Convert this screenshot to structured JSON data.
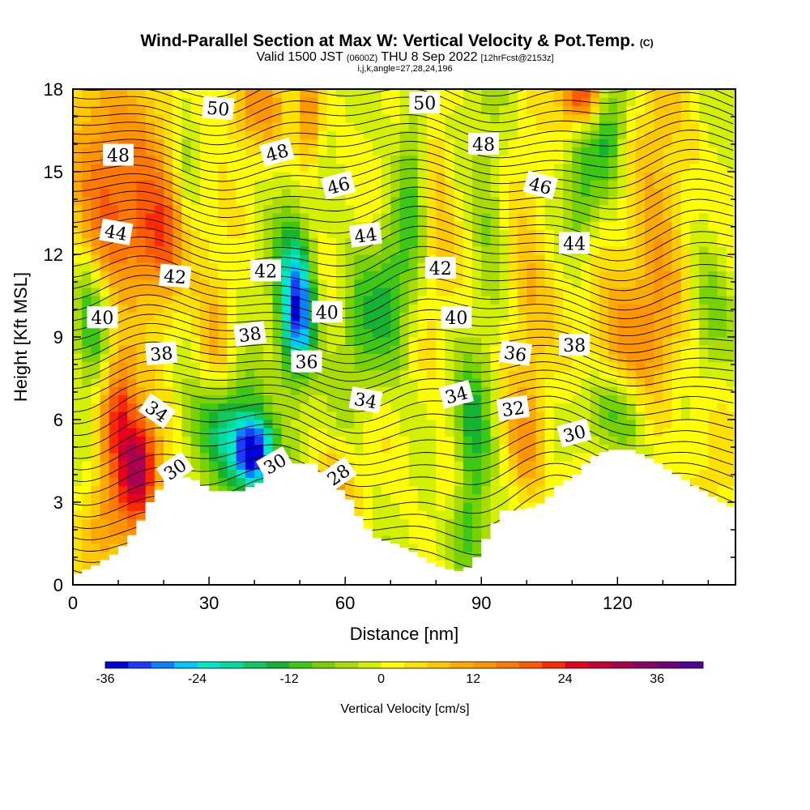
{
  "header": {
    "title": "Wind-Parallel Section at Max W: Vertical Velocity & Pot.Temp.",
    "copyright": "(C)",
    "valid_prefix": "Valid 1500 JST",
    "valid_utc": "(0600Z)",
    "valid_date": "THU 8 Sep 2022",
    "forecast": "[12hrFcst@2153z]",
    "indices": "i,j,k,angle=27,28,24,196"
  },
  "chart_data": {
    "type": "heatmap",
    "title": "Wind-Parallel Section at Max W: Vertical Velocity & Pot.Temp.",
    "xlabel": "Distance [nm]",
    "ylabel": "Height [Kft MSL]",
    "xlim": [
      0,
      146
    ],
    "ylim": [
      0,
      18
    ],
    "x_ticks": [
      "0",
      "30",
      "60",
      "90",
      "120"
    ],
    "x_tick_values": [
      0,
      30,
      60,
      90,
      120
    ],
    "y_ticks": [
      "0",
      "3",
      "6",
      "9",
      "12",
      "15",
      "18"
    ],
    "y_tick_values": [
      0,
      3,
      6,
      9,
      12,
      15,
      18
    ],
    "colorbar": {
      "label": "Vertical Velocity [cm/s]",
      "tick_labels": [
        "-36",
        "-24",
        "-12",
        "0",
        "12",
        "24",
        "36"
      ],
      "tick_values": [
        -36,
        -24,
        -12,
        0,
        12,
        24,
        36
      ],
      "levels": [
        -36,
        -33,
        -30,
        -27,
        -24,
        -21,
        -18,
        -15,
        -12,
        -9,
        -6,
        -3,
        0,
        3,
        6,
        9,
        12,
        15,
        18,
        21,
        24,
        27,
        30,
        33,
        36,
        39,
        42
      ],
      "colors": [
        "#0000dc",
        "#1e3cff",
        "#0a82ff",
        "#00c8ff",
        "#00e6c8",
        "#00dca0",
        "#10c864",
        "#14b432",
        "#3cc814",
        "#78d200",
        "#aadc00",
        "#d2f000",
        "#ffff00",
        "#ffe100",
        "#ffc800",
        "#ffaa00",
        "#ff9600",
        "#ff7800",
        "#ff5a00",
        "#ff2800",
        "#e6001e",
        "#c80032",
        "#aa0050",
        "#8c0064",
        "#6e0078",
        "#500096"
      ]
    },
    "terrain": [
      [
        0,
        0.4
      ],
      [
        4,
        0.7
      ],
      [
        9,
        1.2
      ],
      [
        13,
        2
      ],
      [
        16,
        3
      ],
      [
        20,
        3.9
      ],
      [
        25,
        3.9
      ],
      [
        30,
        3.4
      ],
      [
        36,
        3.4
      ],
      [
        40,
        3.7
      ],
      [
        43,
        4.4
      ],
      [
        48,
        4.4
      ],
      [
        52,
        4.4
      ],
      [
        56,
        3.8
      ],
      [
        60,
        3.1
      ],
      [
        63,
        2.2
      ],
      [
        66,
        1.7
      ],
      [
        70,
        1.5
      ],
      [
        74,
        1.2
      ],
      [
        78,
        0.8
      ],
      [
        81,
        0.6
      ],
      [
        84,
        0.5
      ],
      [
        87,
        0.7
      ],
      [
        88,
        1
      ],
      [
        91,
        2
      ],
      [
        94,
        2.7
      ],
      [
        96,
        2.7
      ],
      [
        100,
        2.8
      ],
      [
        103,
        3
      ],
      [
        106,
        3.6
      ],
      [
        110,
        4
      ],
      [
        113,
        4.6
      ],
      [
        117,
        4.9
      ],
      [
        122,
        4.9
      ],
      [
        126,
        4.6
      ],
      [
        130,
        4.2
      ],
      [
        134,
        3.8
      ],
      [
        138,
        3.4
      ],
      [
        142,
        3
      ],
      [
        146,
        2.7
      ]
    ],
    "w_features": [
      {
        "x": 15,
        "y": 4.2,
        "value": 30,
        "sx": 3,
        "sy": 1.3
      },
      {
        "x": 10,
        "y": 6.5,
        "value": 22,
        "sx": 3,
        "sy": 1.6
      },
      {
        "x": 8,
        "y": 2.2,
        "value": 12,
        "sx": 4,
        "sy": 1.4
      },
      {
        "x": 40,
        "y": 4.7,
        "value": -34,
        "sx": 3,
        "sy": 0.9
      },
      {
        "x": 35,
        "y": 5.6,
        "value": -18,
        "sx": 5,
        "sy": 1.4
      },
      {
        "x": 50,
        "y": 9.8,
        "value": -24,
        "sx": 2.5,
        "sy": 1.6
      },
      {
        "x": 48,
        "y": 10.5,
        "value": -12,
        "sx": 3,
        "sy": 2.5
      },
      {
        "x": 88,
        "y": 5.2,
        "value": -13,
        "sx": 3,
        "sy": 2
      },
      {
        "x": 86,
        "y": 2.2,
        "value": -10,
        "sx": 4,
        "sy": 1.5
      },
      {
        "x": 120,
        "y": 6.3,
        "value": -15,
        "sx": 5,
        "sy": 1.2
      },
      {
        "x": 118,
        "y": 16.5,
        "value": -13,
        "sx": 3,
        "sy": 1.6
      },
      {
        "x": 112,
        "y": 14,
        "value": -11,
        "sx": 2.5,
        "sy": 1.5
      },
      {
        "x": 112,
        "y": 17.8,
        "value": 26,
        "sx": 3,
        "sy": 0.8
      },
      {
        "x": 15,
        "y": 14,
        "value": 12,
        "sx": 7,
        "sy": 3
      },
      {
        "x": 5,
        "y": 15,
        "value": 12,
        "sx": 5,
        "sy": 4
      },
      {
        "x": 20,
        "y": 12.5,
        "value": 14,
        "sx": 5,
        "sy": 1.5
      },
      {
        "x": 3,
        "y": 10.5,
        "value": -12,
        "sx": 3,
        "sy": 1.5
      },
      {
        "x": 5,
        "y": 8.5,
        "value": -10,
        "sx": 3,
        "sy": 1.5
      },
      {
        "x": 40,
        "y": 17.5,
        "value": 12,
        "sx": 5,
        "sy": 1.2
      },
      {
        "x": 52,
        "y": 17,
        "value": 15,
        "sx": 2,
        "sy": 1.5
      },
      {
        "x": 75,
        "y": 15,
        "value": -9,
        "sx": 2.5,
        "sy": 3
      },
      {
        "x": 80,
        "y": 14,
        "value": 8,
        "sx": 3,
        "sy": 3
      },
      {
        "x": 70,
        "y": 10.5,
        "value": -11,
        "sx": 3,
        "sy": 2
      },
      {
        "x": 63,
        "y": 9.5,
        "value": -9,
        "sx": 3,
        "sy": 2
      },
      {
        "x": 120,
        "y": 8.5,
        "value": 13,
        "sx": 5,
        "sy": 2
      },
      {
        "x": 128,
        "y": 10,
        "value": 10,
        "sx": 4,
        "sy": 2.5
      },
      {
        "x": 140,
        "y": 10,
        "value": -8,
        "sx": 3,
        "sy": 2
      },
      {
        "x": 100,
        "y": 11,
        "value": 9,
        "sx": 4,
        "sy": 3
      },
      {
        "x": 92,
        "y": 14,
        "value": -7,
        "sx": 3,
        "sy": 3
      },
      {
        "x": 100,
        "y": 5,
        "value": 11,
        "sx": 3,
        "sy": 1.5
      },
      {
        "x": 58,
        "y": 3.5,
        "value": 12,
        "sx": 3,
        "sy": 1
      },
      {
        "x": 83,
        "y": 3.5,
        "value": 10,
        "sx": 3,
        "sy": 1.3
      },
      {
        "x": 130,
        "y": 15,
        "value": 8,
        "sx": 5,
        "sy": 3
      },
      {
        "x": 25,
        "y": 14,
        "value": -6,
        "sx": 2,
        "sy": 4
      },
      {
        "x": 32,
        "y": 9,
        "value": 10,
        "sx": 3,
        "sy": 1.5
      },
      {
        "x": 140,
        "y": 5,
        "value": 6,
        "sx": 4,
        "sy": 2
      },
      {
        "x": 110,
        "y": 4,
        "value": 4,
        "sx": 3,
        "sy": 1
      }
    ],
    "theta_labels": [
      {
        "text": "50",
        "x": 32,
        "y": 17.3,
        "rot": 5
      },
      {
        "text": "50",
        "x": 77.5,
        "y": 17.5,
        "rot": 0
      },
      {
        "text": "48",
        "x": 10,
        "y": 15.6,
        "rot": 0
      },
      {
        "text": "48",
        "x": 45,
        "y": 15.7,
        "rot": -15
      },
      {
        "text": "48",
        "x": 90.5,
        "y": 16,
        "rot": 0
      },
      {
        "text": "46",
        "x": 58.5,
        "y": 14.5,
        "rot": -15
      },
      {
        "text": "46",
        "x": 103,
        "y": 14.5,
        "rot": 15
      },
      {
        "text": "44",
        "x": 9.5,
        "y": 12.8,
        "rot": 10
      },
      {
        "text": "44",
        "x": 64.5,
        "y": 12.7,
        "rot": -8
      },
      {
        "text": "44",
        "x": 110.5,
        "y": 12.4,
        "rot": 0
      },
      {
        "text": "42",
        "x": 22.5,
        "y": 11.2,
        "rot": 5
      },
      {
        "text": "42",
        "x": 42.5,
        "y": 11.4,
        "rot": 0
      },
      {
        "text": "42",
        "x": 81,
        "y": 11.5,
        "rot": 0
      },
      {
        "text": "40",
        "x": 6.5,
        "y": 9.7,
        "rot": 0
      },
      {
        "text": "40",
        "x": 56,
        "y": 9.9,
        "rot": 0
      },
      {
        "text": "40",
        "x": 84.5,
        "y": 9.7,
        "rot": 0
      },
      {
        "text": "38",
        "x": 19.5,
        "y": 8.4,
        "rot": -5
      },
      {
        "text": "38",
        "x": 39,
        "y": 9.1,
        "rot": -8
      },
      {
        "text": "38",
        "x": 110.5,
        "y": 8.7,
        "rot": 0
      },
      {
        "text": "36",
        "x": 51.5,
        "y": 8.1,
        "rot": 0
      },
      {
        "text": "36",
        "x": 97.5,
        "y": 8.4,
        "rot": 8
      },
      {
        "text": "34",
        "x": 18.5,
        "y": 6.3,
        "rot": 35
      },
      {
        "text": "34",
        "x": 64.5,
        "y": 6.7,
        "rot": 10
      },
      {
        "text": "34",
        "x": 84.5,
        "y": 6.9,
        "rot": -15
      },
      {
        "text": "32",
        "x": 97,
        "y": 6.4,
        "rot": -8
      },
      {
        "text": "30",
        "x": 22.5,
        "y": 4.2,
        "rot": -35
      },
      {
        "text": "30",
        "x": 44.5,
        "y": 4.4,
        "rot": -30
      },
      {
        "text": "30",
        "x": 110.5,
        "y": 5.5,
        "rot": -15
      },
      {
        "text": "28",
        "x": 58.5,
        "y": 4,
        "rot": -35
      }
    ]
  }
}
